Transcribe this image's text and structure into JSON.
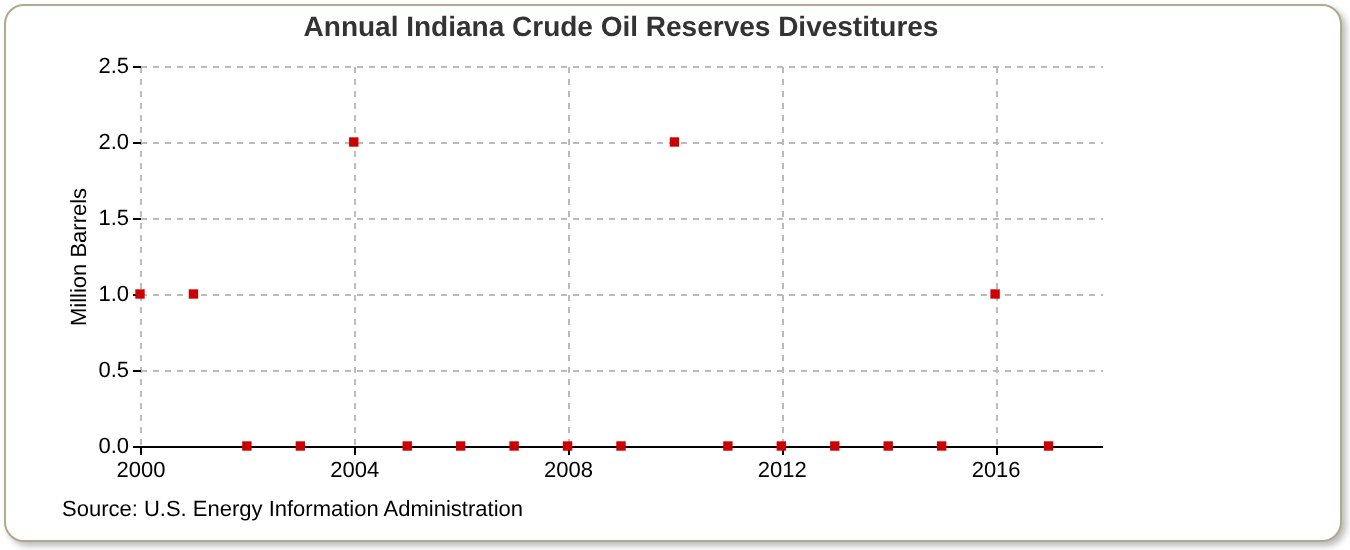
{
  "chart_data": {
    "type": "scatter",
    "title": "Annual Indiana Crude Oil Reserves Divestitures",
    "ylabel": "Million Barrels",
    "annotations": [
      "Source: U.S. Energy Information Administration"
    ],
    "x": [
      2000,
      2001,
      2002,
      2003,
      2004,
      2005,
      2006,
      2007,
      2008,
      2009,
      2010,
      2011,
      2012,
      2013,
      2014,
      2015,
      2016,
      2017
    ],
    "series": [
      {
        "color": "#cc0000",
        "values": [
          1,
          1,
          0,
          0,
          2,
          0,
          0,
          0,
          0,
          0,
          2,
          0,
          0,
          0,
          0,
          0,
          1,
          0
        ]
      }
    ],
    "xlim": [
      2000,
      2018
    ],
    "xticks": [
      2000,
      2004,
      2008,
      2012,
      2016
    ],
    "ylim": [
      0,
      2.5
    ],
    "yticks": [
      {
        "value": 0,
        "label": "0.0"
      },
      0.5,
      {
        "value": 1,
        "label": "1.0"
      },
      1.5,
      {
        "value": 2,
        "label": "2.0"
      },
      2.5
    ],
    "grid": true,
    "marker": "square",
    "legend": false
  }
}
